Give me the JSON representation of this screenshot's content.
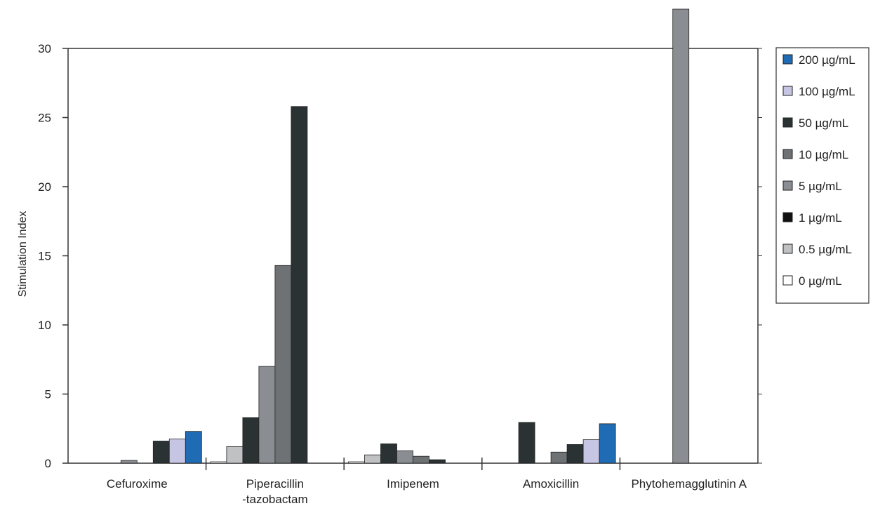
{
  "chart_data": {
    "type": "bar",
    "title": "",
    "xlabel": "",
    "ylabel": "Stimulation Index",
    "ylim": [
      0,
      30
    ],
    "yticks": [
      0,
      5,
      10,
      15,
      20,
      25,
      30
    ],
    "grid": false,
    "legend_position": "right",
    "categories": [
      [
        "Cefuroxime"
      ],
      [
        "Piperacillin",
        "-tazobactam"
      ],
      [
        "Imipenem"
      ],
      [
        "Amoxicillin"
      ],
      [
        "Phytohemagglutinin A"
      ]
    ],
    "series": [
      {
        "name": "0 µg/mL",
        "color": "#ffffff",
        "values": [
          0,
          0.1,
          0.1,
          0,
          0
        ]
      },
      {
        "name": "0.5 µg/mL",
        "color": "#bfc1c2",
        "values": [
          0,
          1.2,
          0.6,
          0,
          0
        ]
      },
      {
        "name": "1 µg/mL",
        "color": "#111111",
        "values": [
          0,
          0,
          0,
          0,
          0
        ]
      },
      {
        "name": "5 µg/mL",
        "color": "#8a8e92",
        "values": [
          0.2,
          7.0,
          0.9,
          0,
          0
        ]
      },
      {
        "name": "10 µg/mL",
        "color": "#6e7275",
        "values": [
          0,
          14.3,
          0.5,
          0.8,
          0
        ]
      },
      {
        "name": "50 µg/mL",
        "color": "#2b3234",
        "values": [
          1.6,
          25.8,
          0.25,
          1.35,
          0
        ]
      },
      {
        "name": "100 µg/mL",
        "color": "#c6c6e4",
        "values": [
          1.75,
          0,
          0,
          1.7,
          0
        ]
      },
      {
        "name": "200 µg/mL",
        "color": "#1f6cb5",
        "values": [
          2.3,
          0,
          0,
          2.85,
          0
        ]
      }
    ],
    "extra_bars": [
      {
        "category_index": 1,
        "series": "50 µg/mL",
        "value": 3.3,
        "note": "first dark bar"
      },
      {
        "category_index": 2,
        "series": "50 µg/mL",
        "value": 1.4,
        "note": "first dark bar"
      },
      {
        "category_index": 3,
        "series": "50 µg/mL",
        "value": 2.95,
        "note": "first dark bar"
      },
      {
        "category_index": 4,
        "series": "5 µg/mL",
        "value": 33,
        "note": "exceeds axis"
      }
    ]
  }
}
